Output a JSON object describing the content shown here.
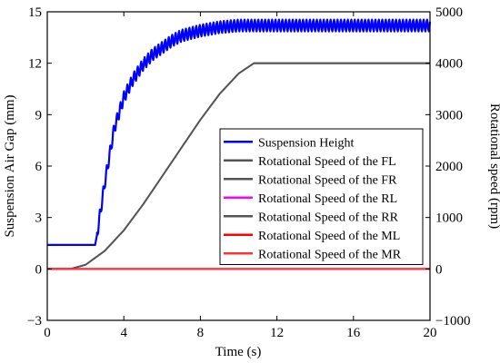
{
  "chart_data": {
    "type": "line",
    "xlabel": "Time (s)",
    "ylabel_left": "Suspension Air Gap (mm)",
    "ylabel_right": "Rotational speed (rpm)",
    "xlim": [
      0,
      20
    ],
    "ylim_left": [
      -3,
      15
    ],
    "ylim_right": [
      -1000,
      5000
    ],
    "x_ticks": [
      "0",
      "4",
      "8",
      "12",
      "16",
      "20"
    ],
    "y_left_ticks": [
      "−3",
      "0",
      "3",
      "6",
      "9",
      "12",
      "15"
    ],
    "y_right_ticks": [
      "−1000",
      "0",
      "1000",
      "2000",
      "3000",
      "4000",
      "5000"
    ],
    "grid": false,
    "legend_position": "center-right",
    "series": [
      {
        "name": "Suspension Height",
        "axis": "left",
        "color": "#0000ff",
        "oscillation_amplitude_mm": 0.35,
        "oscillation_period_s": 0.18,
        "x": [
          0,
          2.5,
          2.6,
          3.0,
          3.5,
          4.0,
          4.5,
          5.0,
          5.5,
          6.0,
          6.5,
          7.0,
          8.0,
          9.0,
          10.0,
          11.0,
          12.0,
          14.0,
          16.0,
          18.0,
          20.0
        ],
        "y": [
          1.4,
          1.4,
          2.0,
          5.0,
          8.2,
          10.0,
          11.1,
          11.9,
          12.5,
          12.9,
          13.3,
          13.6,
          13.9,
          14.1,
          14.2,
          14.2,
          14.2,
          14.2,
          14.2,
          14.2,
          14.2
        ]
      },
      {
        "name": "Rotational Speed of the FL",
        "axis": "right",
        "color": "#555555",
        "x": [
          0,
          1.2,
          2.0,
          3.0,
          4.0,
          5.0,
          6.0,
          7.0,
          8.0,
          9.0,
          10.0,
          10.8,
          12.0,
          14.0,
          16.0,
          18.0,
          20.0
        ],
        "y": [
          0,
          0,
          80,
          350,
          750,
          1250,
          1800,
          2350,
          2900,
          3400,
          3800,
          4000,
          4000,
          4000,
          4000,
          4000,
          4000
        ]
      },
      {
        "name": "Rotational Speed of the FR",
        "axis": "right",
        "color": "#555555",
        "x": [
          0,
          1.2,
          2.0,
          3.0,
          4.0,
          5.0,
          6.0,
          7.0,
          8.0,
          9.0,
          10.0,
          10.8,
          12.0,
          14.0,
          16.0,
          18.0,
          20.0
        ],
        "y": [
          0,
          0,
          80,
          350,
          750,
          1250,
          1800,
          2350,
          2900,
          3400,
          3800,
          4000,
          4000,
          4000,
          4000,
          4000,
          4000
        ]
      },
      {
        "name": "Rotational Speed of the RL",
        "axis": "right",
        "color": "#ff00ff",
        "x": [
          0,
          20
        ],
        "y": [
          0,
          0
        ]
      },
      {
        "name": "Rotational Speed of the RR",
        "axis": "right",
        "color": "#555555",
        "x": [
          0,
          1.2,
          2.0,
          3.0,
          4.0,
          5.0,
          6.0,
          7.0,
          8.0,
          9.0,
          10.0,
          10.8,
          12.0,
          14.0,
          16.0,
          18.0,
          20.0
        ],
        "y": [
          0,
          0,
          80,
          350,
          750,
          1250,
          1800,
          2350,
          2900,
          3400,
          3800,
          4000,
          4000,
          4000,
          4000,
          4000,
          4000
        ]
      },
      {
        "name": "Rotational Speed of the ML",
        "axis": "right",
        "color": "#ff0000",
        "x": [
          0,
          20
        ],
        "y": [
          0,
          0
        ]
      },
      {
        "name": "Rotational Speed of the MR",
        "axis": "right",
        "color": "#ff3333",
        "x": [
          0,
          20
        ],
        "y": [
          0,
          0
        ]
      }
    ]
  }
}
